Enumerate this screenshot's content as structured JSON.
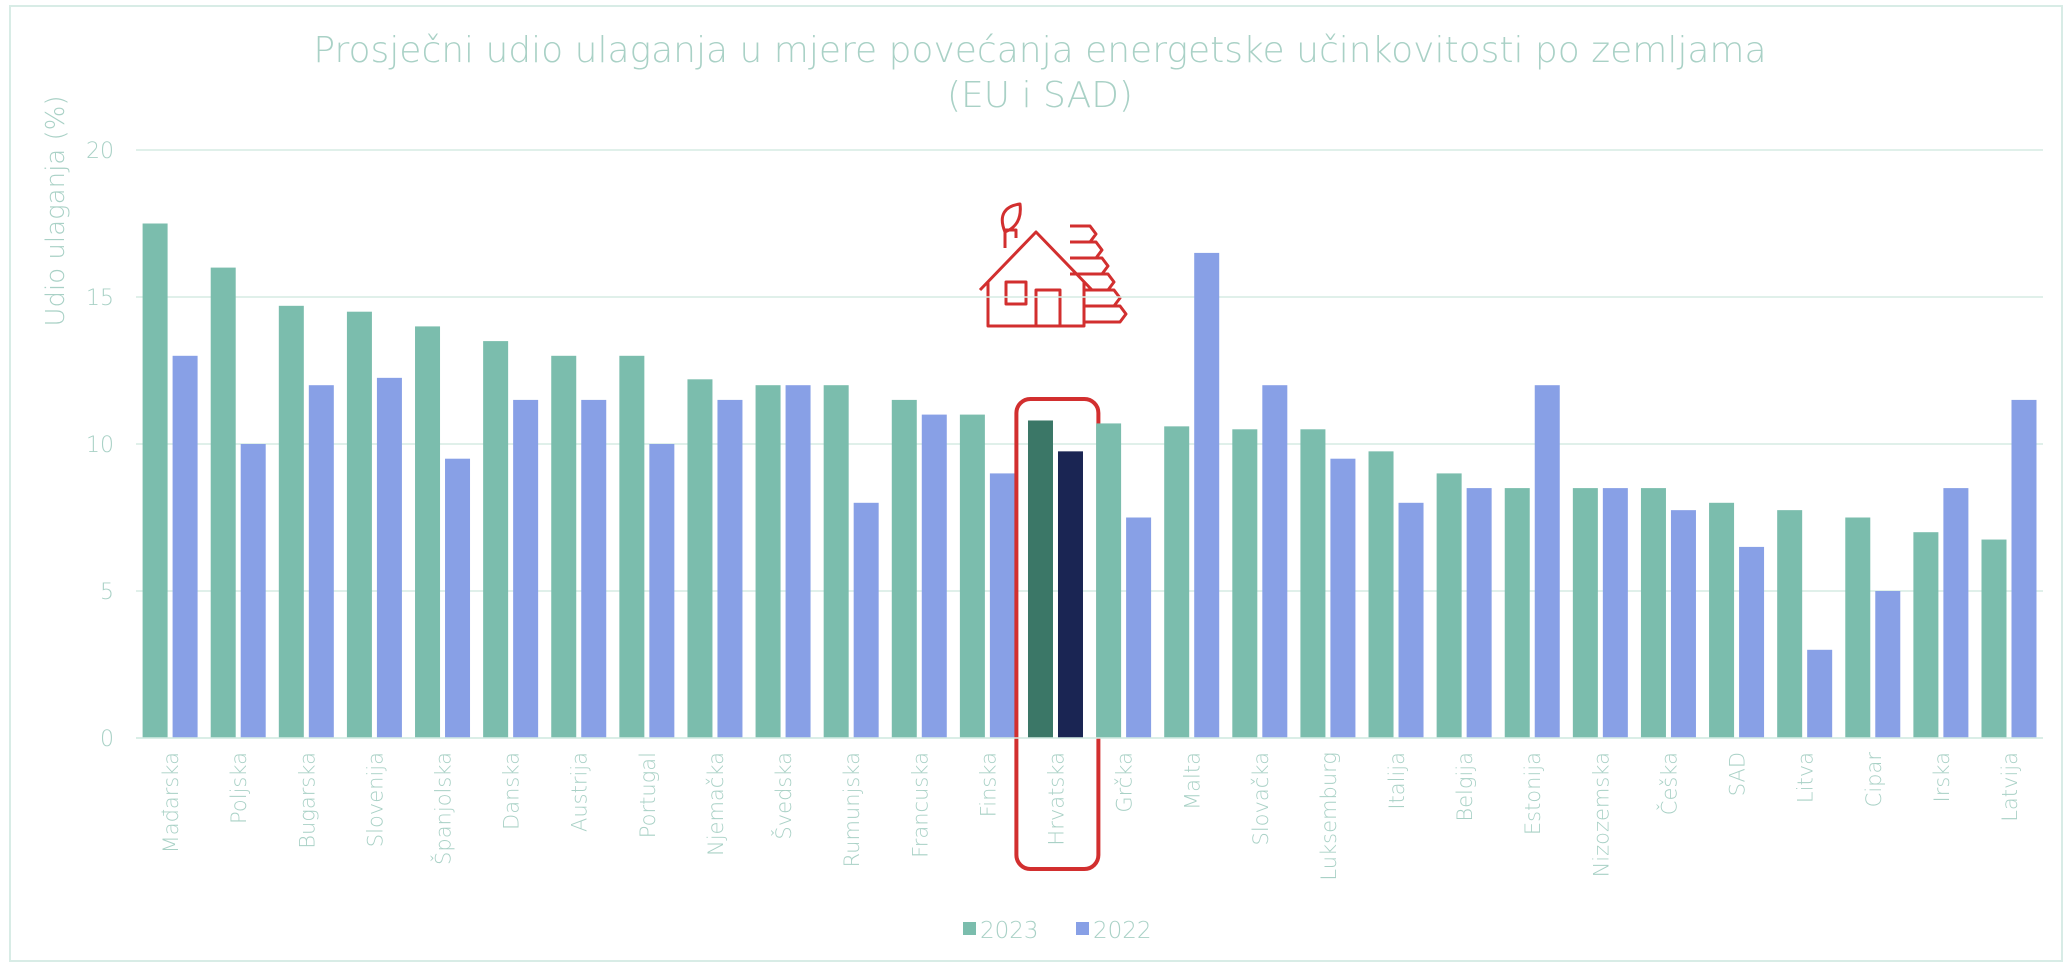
{
  "chart_data": {
    "type": "bar",
    "title": [
      "Prosječni udio ulaganja u mjere povećanja energetske učinkovitosti po zemljama",
      "(EU i SAD)"
    ],
    "y_label": "Udio ulaganja (%)",
    "categories": [
      "Mađarska",
      "Poljska",
      "Bugarska",
      "Slovenija",
      "Španjolska",
      "Danska",
      "Austrija",
      "Portugal",
      "Njemačka",
      "Švedska",
      "Rumunjska",
      "Francuska",
      "Finska",
      "Hrvatska",
      "Grčka",
      "Malta",
      "Slovačka",
      "Luksemburg",
      "Italija",
      "Belgija",
      "Estonija",
      "Nizozemska",
      "Češka",
      "SAD",
      "Litva",
      "Cipar",
      "Irska",
      "Latvija"
    ],
    "series": [
      {
        "name": "2023",
        "color": "#7bbdad",
        "values": [
          17.5,
          16,
          14.7,
          14.5,
          14,
          13.5,
          13,
          13,
          12.2,
          12,
          12,
          11.5,
          11,
          10.8,
          10.7,
          10.6,
          10.5,
          10.5,
          9.75,
          9,
          8.5,
          8.5,
          8.5,
          8,
          7.75,
          7.5,
          7,
          6.75
        ]
      },
      {
        "name": "2022",
        "color": "#88a0e6",
        "values": [
          13,
          10,
          12,
          12.25,
          9.5,
          11.5,
          11.5,
          10,
          11.5,
          12,
          8,
          11,
          9,
          9.75,
          7.5,
          16.5,
          12,
          9.5,
          8,
          8.5,
          12,
          8.5,
          7.75,
          6.5,
          3,
          5,
          8.5,
          11.5
        ]
      }
    ],
    "highlight": {
      "category": "Hrvatska",
      "colors": [
        "#3b7767",
        "#1a2553"
      ]
    },
    "ylim": [
      0,
      20
    ],
    "yticks": [
      0,
      5,
      10,
      15,
      20
    ],
    "grid": true,
    "legend": "bottom"
  }
}
